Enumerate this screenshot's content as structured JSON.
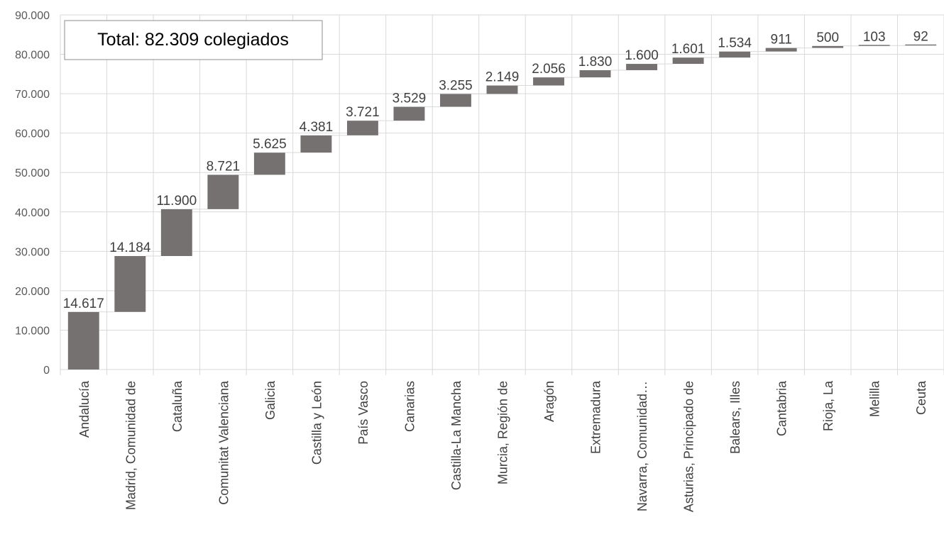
{
  "chart_data": {
    "type": "bar",
    "subtype": "waterfall",
    "categories": [
      "Andalucía",
      "Madrid, Comunidad de",
      "Cataluña",
      "Comunitat Valenciana",
      "Galicia",
      "Castilla y León",
      "País Vasco",
      "Canarias",
      "Castilla-La Mancha",
      "Murcia, Región de",
      "Aragón",
      "Extremadura",
      "Navarra, Comunidad…",
      "Asturias, Principado de",
      "Balears, Illes",
      "Cantabria",
      "Rioja, La",
      "Melilla",
      "Ceuta"
    ],
    "values": [
      14617,
      14184,
      11900,
      8721,
      5625,
      4381,
      3721,
      3529,
      3255,
      2149,
      2056,
      1830,
      1600,
      1601,
      1534,
      911,
      500,
      103,
      92
    ],
    "data_labels": [
      "14.617",
      "14.184",
      "11.900",
      "8.721",
      "5.625",
      "4.381",
      "3.721",
      "3.529",
      "3.255",
      "2.149",
      "2.056",
      "1.830",
      "1.600",
      "1.601",
      "1.534",
      "911",
      "500",
      "103",
      "92"
    ],
    "y_ticks": [
      "0",
      "10.000",
      "20.000",
      "30.000",
      "40.000",
      "50.000",
      "60.000",
      "70.000",
      "80.000",
      "90.000"
    ],
    "ylim": [
      0,
      90000
    ],
    "title": "",
    "xlabel": "",
    "ylabel": "",
    "grid": true,
    "legend": "none",
    "annotation": "Total: 82.309 colegiados",
    "colors": {
      "bar": "#757171",
      "grid": "#d9d9d9",
      "connector": "#d9d9d9"
    }
  }
}
